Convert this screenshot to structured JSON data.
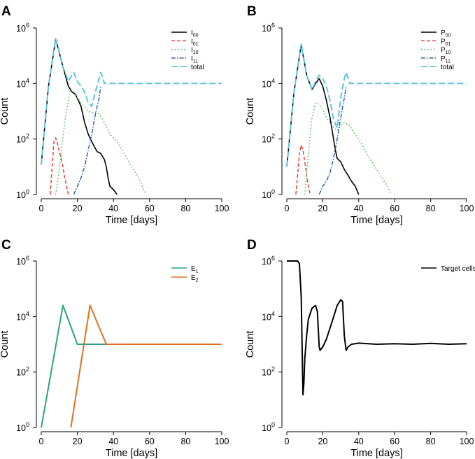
{
  "chart_data": [
    {
      "panel_label": "A",
      "type": "line",
      "xlabel": "Time [days]",
      "ylabel": "Count",
      "xlim": [
        0,
        100
      ],
      "ylim_log10": [
        0,
        6
      ],
      "x_ticks": [
        "0",
        "20",
        "40",
        "60",
        "80",
        "100"
      ],
      "y_ticks": [
        {
          "base": "10",
          "exp": "0"
        },
        {
          "base": "10",
          "exp": "2"
        },
        {
          "base": "10",
          "exp": "4"
        },
        {
          "base": "10",
          "exp": "6"
        }
      ],
      "legend_position": "top-right",
      "series": [
        {
          "name": "I",
          "sub": "00",
          "color": "#000000",
          "dash": "",
          "width": 1.6,
          "x": [
            0,
            4,
            8,
            12,
            15,
            17,
            19,
            22,
            24,
            26,
            28,
            30,
            31,
            33,
            35,
            36,
            37,
            38,
            40,
            42
          ],
          "y": [
            12,
            8000,
            400000,
            40000,
            8000,
            5000,
            4000,
            1500,
            400,
            150,
            80,
            45,
            35,
            30,
            18,
            10,
            4,
            2,
            1.5,
            1
          ]
        },
        {
          "name": "I",
          "sub": "01",
          "color": "#e8322a",
          "dash": "5,3",
          "width": 1.4,
          "x": [
            5,
            6,
            7,
            8,
            9,
            10,
            11,
            12,
            13,
            14,
            15
          ],
          "y": [
            1,
            10,
            80,
            110,
            70,
            35,
            20,
            10,
            4,
            2,
            1
          ]
        },
        {
          "name": "I",
          "sub": "10",
          "color": "#3ab03a",
          "dash": "1.5,3",
          "width": 1.4,
          "x": [
            8,
            10,
            13,
            16,
            18,
            20,
            22,
            24,
            26,
            28,
            30,
            32,
            35,
            38,
            42,
            46,
            50,
            54,
            56,
            58
          ],
          "y": [
            1,
            8,
            400,
            6000,
            5000,
            3000,
            2000,
            1400,
            1000,
            900,
            900,
            800,
            400,
            150,
            80,
            30,
            10,
            4,
            2,
            1
          ]
        },
        {
          "name": "I",
          "sub": "11",
          "color": "#2457a8",
          "dash": "6,2,1.5,2",
          "width": 1.4,
          "x": [
            18,
            20,
            22,
            24,
            26,
            28,
            30,
            32,
            33
          ],
          "y": [
            1,
            2,
            4,
            10,
            40,
            150,
            800,
            3000,
            8000
          ]
        },
        {
          "name": "total",
          "sub": "",
          "color": "#5bc4e0",
          "dash": "9,4",
          "width": 2.0,
          "x": [
            0,
            4,
            8,
            12,
            15,
            17,
            18,
            20,
            22,
            24,
            26,
            28,
            30,
            32,
            33,
            35,
            40,
            60,
            80,
            100
          ],
          "y": [
            12,
            8000,
            420000,
            40000,
            12000,
            20000,
            25000,
            12000,
            8000,
            5000,
            2000,
            1500,
            5000,
            15000,
            25000,
            10000,
            10000,
            10000,
            10000,
            10000
          ]
        }
      ]
    },
    {
      "panel_label": "B",
      "type": "line",
      "xlabel": "Time [days]",
      "ylabel": "Count",
      "xlim": [
        0,
        100
      ],
      "ylim_log10": [
        0,
        6
      ],
      "x_ticks": [
        "0",
        "20",
        "40",
        "60",
        "80",
        "100"
      ],
      "y_ticks": [
        {
          "base": "10",
          "exp": "0"
        },
        {
          "base": "10",
          "exp": "2"
        },
        {
          "base": "10",
          "exp": "4"
        },
        {
          "base": "10",
          "exp": "6"
        }
      ],
      "legend_position": "top-right",
      "series": [
        {
          "name": "P",
          "sub": "00",
          "color": "#000000",
          "dash": "",
          "width": 1.6,
          "x": [
            0,
            4,
            8,
            11,
            14,
            16,
            18,
            20,
            22,
            24,
            26,
            27,
            28,
            30,
            32,
            34,
            36,
            38,
            40
          ],
          "y": [
            10,
            5000,
            250000,
            20000,
            6000,
            10000,
            15000,
            8000,
            2500,
            600,
            100,
            40,
            20,
            15,
            8,
            5,
            3,
            2,
            1
          ]
        },
        {
          "name": "P",
          "sub": "01",
          "color": "#e8322a",
          "dash": "5,3",
          "width": 1.4,
          "x": [
            5,
            6,
            7,
            8,
            9,
            10,
            11,
            12,
            13
          ],
          "y": [
            1,
            5,
            30,
            60,
            40,
            15,
            5,
            2,
            1
          ]
        },
        {
          "name": "P",
          "sub": "10",
          "color": "#3ab03a",
          "dash": "1.5,3",
          "width": 1.4,
          "x": [
            10,
            12,
            14,
            16,
            18,
            20,
            22,
            25,
            28,
            30,
            32,
            35,
            38,
            42,
            46,
            50,
            54,
            56,
            58
          ],
          "y": [
            1,
            30,
            600,
            2000,
            1800,
            1200,
            600,
            300,
            200,
            300,
            400,
            300,
            150,
            60,
            20,
            8,
            3,
            2,
            1
          ]
        },
        {
          "name": "P",
          "sub": "11",
          "color": "#2457a8",
          "dash": "6,2,1.5,2",
          "width": 1.4,
          "x": [
            18,
            20,
            22,
            24,
            26,
            28,
            30,
            32,
            33
          ],
          "y": [
            1,
            2,
            3,
            6,
            20,
            100,
            600,
            3000,
            8000
          ]
        },
        {
          "name": "total",
          "sub": "",
          "color": "#5bc4e0",
          "dash": "9,4",
          "width": 2.0,
          "x": [
            0,
            4,
            8,
            11,
            14,
            16,
            18,
            20,
            22,
            24,
            26,
            28,
            30,
            32,
            33,
            35,
            40,
            60,
            80,
            100
          ],
          "y": [
            10,
            5000,
            260000,
            20000,
            6000,
            12000,
            20000,
            15000,
            8000,
            2500,
            500,
            250,
            3000,
            15000,
            25000,
            10000,
            10000,
            10000,
            10000,
            10000
          ]
        }
      ]
    },
    {
      "panel_label": "C",
      "type": "line",
      "xlabel": "Time [days]",
      "ylabel": "Count",
      "xlim": [
        0,
        100
      ],
      "ylim_log10": [
        0,
        6
      ],
      "x_ticks": [
        "0",
        "20",
        "40",
        "60",
        "80",
        "100"
      ],
      "y_ticks": [
        {
          "base": "10",
          "exp": "0"
        },
        {
          "base": "10",
          "exp": "2"
        },
        {
          "base": "10",
          "exp": "4"
        },
        {
          "base": "10",
          "exp": "6"
        }
      ],
      "legend_position": "top-right",
      "series": [
        {
          "name": "E",
          "sub": "1",
          "color": "#2aa383",
          "dash": "",
          "width": 2.0,
          "x": [
            0,
            12,
            20,
            30,
            40,
            60,
            80,
            100
          ],
          "y": [
            1,
            25000,
            1000,
            1000,
            1000,
            1000,
            1000,
            1000
          ]
        },
        {
          "name": "E",
          "sub": "2",
          "color": "#e07020",
          "dash": "",
          "width": 2.0,
          "x": [
            14,
            27,
            36,
            40,
            60,
            80,
            100
          ],
          "y": [
            0.1,
            25000,
            1000,
            1000,
            1000,
            1000,
            1000
          ]
        }
      ]
    },
    {
      "panel_label": "D",
      "type": "line",
      "xlabel": "Time [days]",
      "ylabel": "Count",
      "xlim": [
        0,
        100
      ],
      "ylim_log10": [
        0,
        6
      ],
      "x_ticks": [
        "0",
        "20",
        "40",
        "60",
        "80",
        "100"
      ],
      "y_ticks": [
        {
          "base": "10",
          "exp": "0"
        },
        {
          "base": "10",
          "exp": "2"
        },
        {
          "base": "10",
          "exp": "4"
        },
        {
          "base": "10",
          "exp": "6"
        }
      ],
      "legend_position": "top-right",
      "series": [
        {
          "name": "Target cells",
          "sub": "",
          "color": "#000000",
          "dash": "",
          "width": 2.0,
          "x": [
            0,
            6,
            7,
            8,
            8.5,
            9,
            9.5,
            10,
            11,
            12,
            14,
            16,
            17,
            18,
            18.5,
            20,
            22,
            25,
            28,
            30,
            31,
            32,
            33,
            34,
            36,
            40,
            50,
            60,
            70,
            80,
            90,
            100
          ],
          "y": [
            1000000,
            1000000,
            800000,
            50000,
            1000,
            15,
            40,
            300,
            2000,
            8000,
            20000,
            25000,
            15000,
            800,
            600,
            800,
            1500,
            6000,
            25000,
            40000,
            35000,
            2000,
            600,
            800,
            1000,
            1100,
            1000,
            1050,
            1000,
            1080,
            1000,
            1050
          ]
        }
      ]
    }
  ]
}
